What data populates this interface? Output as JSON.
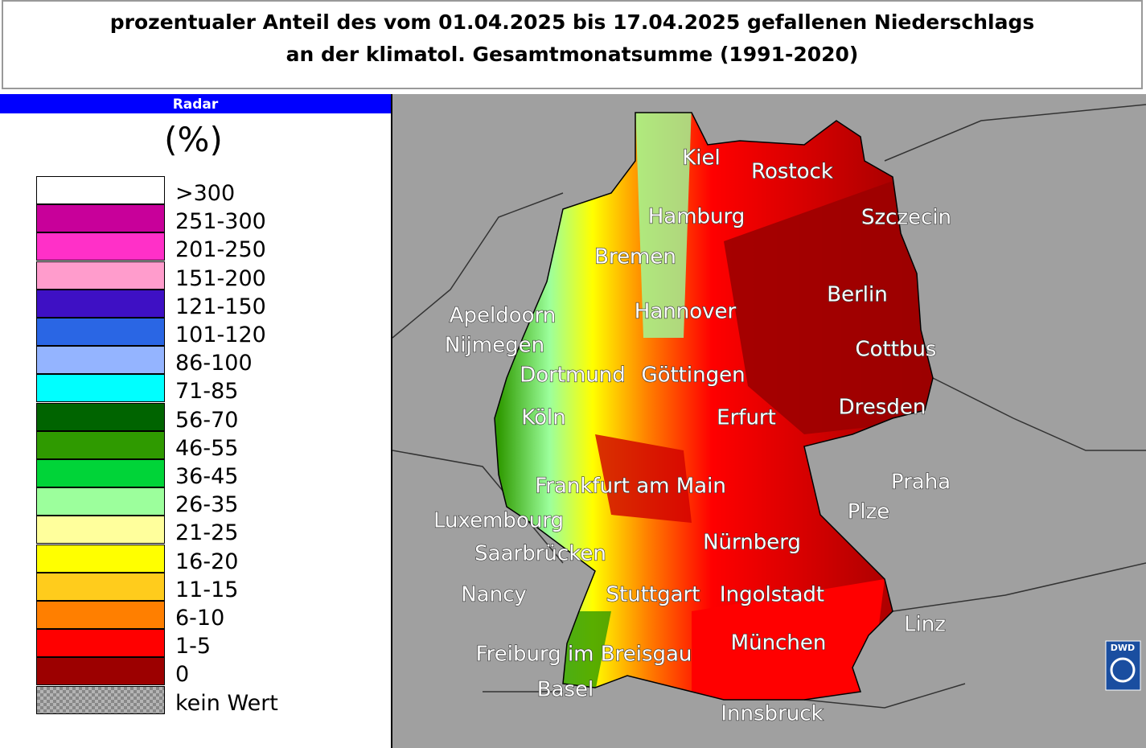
{
  "header": {
    "title_lines": [
      "prozentualer Anteil des vom 01.04.2025 bis 17.04.2025 gefallenen Niederschlags",
      "an der klimatol. Gesamtmonatsumme (1991-2020)"
    ]
  },
  "legend": {
    "source": "Radar",
    "unit": "(%)",
    "items": [
      {
        "label": ">300",
        "color": "#ffffff"
      },
      {
        "label": "251-300",
        "color": "#c8009a"
      },
      {
        "label": "201-250",
        "color": "#ff30c8"
      },
      {
        "label": "151-200",
        "color": "#ff9ccc"
      },
      {
        "label": "121-150",
        "color": "#3e10c4"
      },
      {
        "label": "101-120",
        "color": "#2a66e4"
      },
      {
        "label": "86-100",
        "color": "#94b4ff"
      },
      {
        "label": "71-85",
        "color": "#00ffff"
      },
      {
        "label": "56-70",
        "color": "#006400"
      },
      {
        "label": "46-55",
        "color": "#2f9a00"
      },
      {
        "label": "36-45",
        "color": "#00d438"
      },
      {
        "label": "26-35",
        "color": "#9cff9c"
      },
      {
        "label": "21-25",
        "color": "#ffff9c"
      },
      {
        "label": "16-20",
        "color": "#ffff00"
      },
      {
        "label": "11-15",
        "color": "#ffcc1c"
      },
      {
        "label": "6-10",
        "color": "#ff7f00"
      },
      {
        "label": "1-5",
        "color": "#ff0000"
      },
      {
        "label": "0",
        "color": "#9c0000"
      },
      {
        "label": "kein Wert",
        "color": "#b4b4b4"
      }
    ]
  },
  "map": {
    "cities": [
      "Kiel",
      "Rostock",
      "Hamburg",
      "Szczecin",
      "Bremen",
      "Berlin",
      "Apeldoorn",
      "Hannover",
      "Nijmegen",
      "Cottbus",
      "Dortmund",
      "Göttingen",
      "Köln",
      "Erfurt",
      "Dresden",
      "Praha",
      "Frankfurt am Main",
      "Plze",
      "Luxembourg",
      "Nürnberg",
      "Saarbrücken",
      "Nancy",
      "Stuttgart",
      "Ingolstadt",
      "Linz",
      "München",
      "Freiburg im Breisgau",
      "Basel",
      "Innsbruck"
    ],
    "logo": "DWD"
  }
}
